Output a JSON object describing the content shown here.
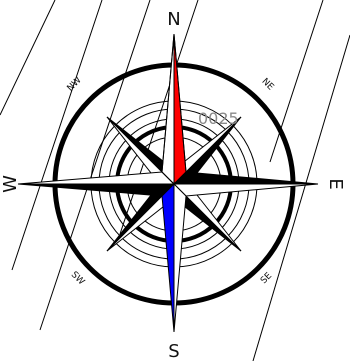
{
  "compass": {
    "north_label": "N",
    "east_label": "E",
    "south_label": "S",
    "west_label": "W",
    "northeast_label": "NE",
    "northwest_label": "NW",
    "southeast_label": "SE",
    "southwest_label": "SW",
    "center_number": "0025",
    "colors": {
      "north_needle": "#ff0000",
      "south_needle": "#0000ff",
      "star_dark": "#000000",
      "star_light": "#ffffff",
      "line": "#000000"
    }
  }
}
